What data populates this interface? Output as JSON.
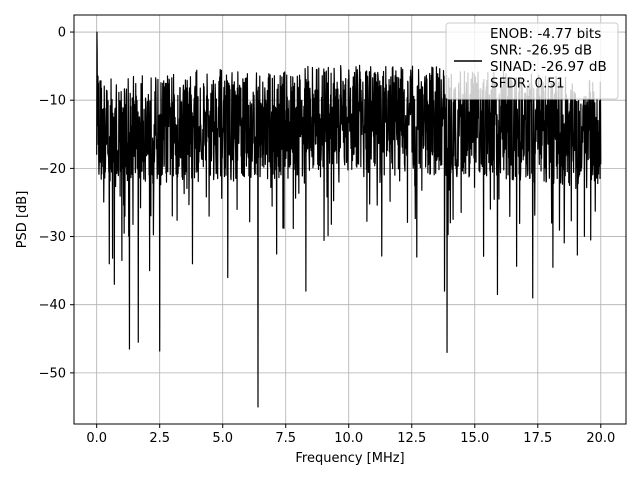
{
  "chart_data": {
    "type": "line",
    "xlabel": "Frequency [MHz]",
    "ylabel": "PSD [dB]",
    "xlim": [
      -0.9,
      21.0
    ],
    "ylim": [
      -57.5,
      2.5
    ],
    "xticks": [
      0.0,
      2.5,
      5.0,
      7.5,
      10.0,
      12.5,
      15.0,
      17.5,
      20.0
    ],
    "xtick_labels": [
      "0.0",
      "2.5",
      "5.0",
      "7.5",
      "10.0",
      "12.5",
      "15.0",
      "17.5",
      "20.0"
    ],
    "yticks": [
      0,
      -10,
      -20,
      -30,
      -40,
      -50
    ],
    "ytick_labels": [
      "0",
      "−10",
      "−20",
      "−30",
      "−40",
      "−50"
    ],
    "grid": true,
    "legend": {
      "placement": "top-right",
      "lines": [
        "ENOB: -4.77 bits",
        "SNR: -26.95 dB",
        "SINAD: -26.97 dB",
        "SFDR: 0.51"
      ]
    },
    "series": [
      {
        "color": "#000000",
        "x": [
          0.0,
          0.01,
          0.05,
          0.1,
          0.3,
          0.6,
          1.0,
          1.3,
          1.6,
          2.0,
          2.5,
          3.0,
          4.0,
          5.0,
          6.0,
          6.4,
          7.0,
          8.0,
          8.3,
          9.0,
          10.0,
          11.0,
          12.0,
          13.0,
          13.7,
          13.8,
          14.0,
          15.0,
          15.9,
          17.0,
          17.3,
          18.0,
          19.0,
          19.5,
          20.0
        ],
        "y": [
          -18,
          0,
          -9,
          -12,
          -13,
          -12.5,
          -13,
          -12,
          -12.5,
          -12,
          -12.5,
          -12,
          -11.5,
          -11.5,
          -12,
          -12,
          -11.5,
          -11.5,
          -11,
          -11,
          -10.5,
          -11,
          -11,
          -11,
          -11,
          -11.5,
          -11.5,
          -11.5,
          -11.5,
          -12,
          -12,
          -12.5,
          -12.5,
          -13,
          -13
        ],
        "spread": 8,
        "dips": [
          {
            "x": 0.5,
            "y": -34
          },
          {
            "x": 0.7,
            "y": -37
          },
          {
            "x": 1.0,
            "y": -33.5
          },
          {
            "x": 1.3,
            "y": -46.5
          },
          {
            "x": 1.65,
            "y": -45.5
          },
          {
            "x": 2.1,
            "y": -35
          },
          {
            "x": 2.5,
            "y": -46.8
          },
          {
            "x": 3.8,
            "y": -34
          },
          {
            "x": 5.2,
            "y": -36
          },
          {
            "x": 6.4,
            "y": -55
          },
          {
            "x": 8.3,
            "y": -38
          },
          {
            "x": 12.7,
            "y": -33
          },
          {
            "x": 13.8,
            "y": -38
          },
          {
            "x": 13.9,
            "y": -47
          },
          {
            "x": 15.9,
            "y": -38.5
          },
          {
            "x": 17.3,
            "y": -39
          },
          {
            "x": 18.1,
            "y": -34.5
          },
          {
            "x": 19.6,
            "y": -30.5
          }
        ]
      }
    ]
  }
}
